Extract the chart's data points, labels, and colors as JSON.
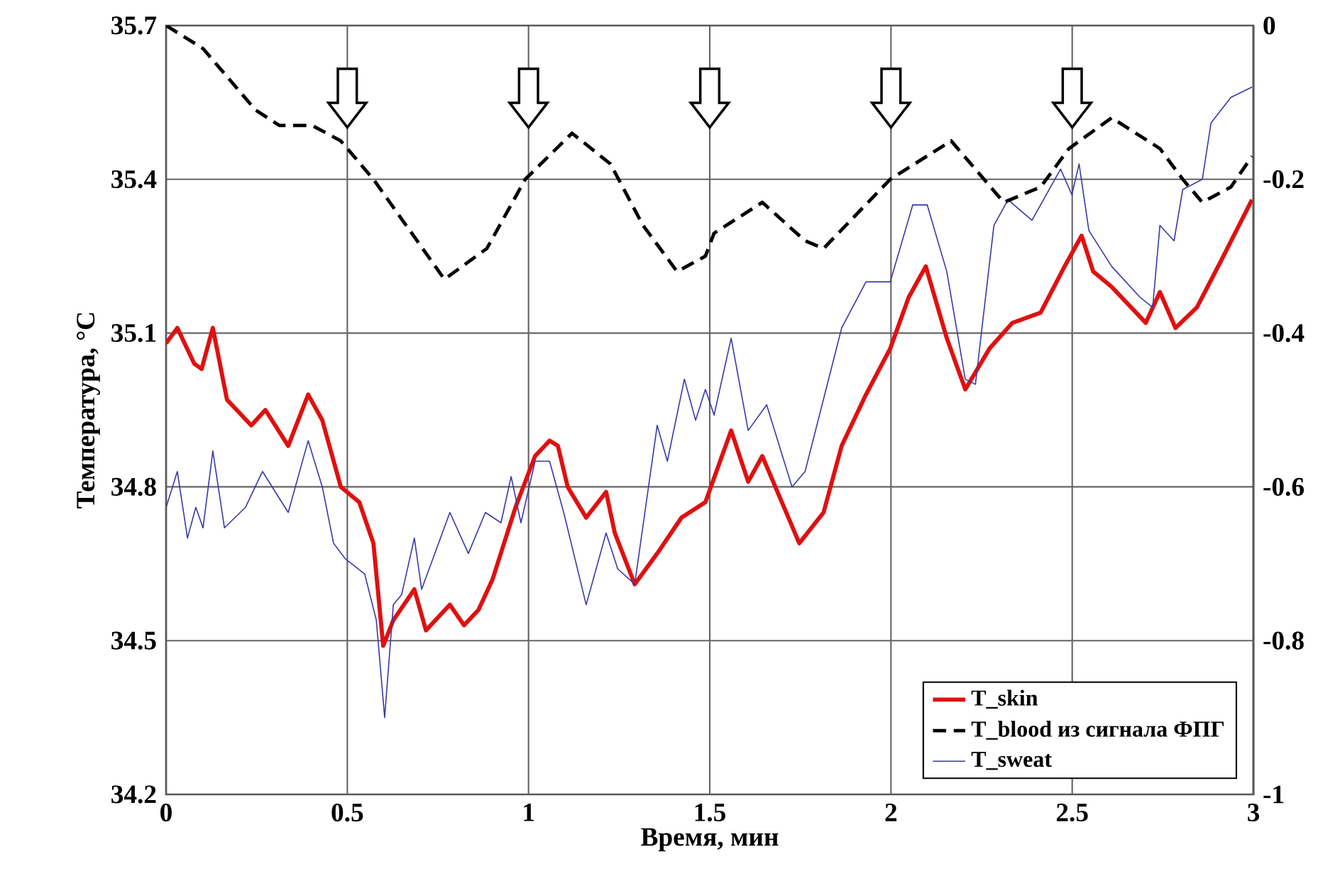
{
  "chart_data": {
    "type": "line",
    "xlabel": "Время, мин",
    "ylabel": "Температура, °C",
    "xlim": [
      0,
      3
    ],
    "xticks": [
      0,
      0.5,
      1,
      1.5,
      2,
      2.5,
      3
    ],
    "ylim": [
      34.2,
      35.7
    ],
    "yticks": [
      34.2,
      34.5,
      34.8,
      35.1,
      35.4,
      35.7
    ],
    "y2lim": [
      -1,
      0
    ],
    "y2ticks": [
      -1,
      -0.8,
      -0.6,
      -0.4,
      -0.2,
      0
    ],
    "grid": true,
    "legend": "bottom right",
    "series": [
      {
        "name": "T_skin",
        "color": "#e01010",
        "line_style": "solid",
        "x": [
          0,
          0.031,
          0.078,
          0.098,
          0.129,
          0.168,
          0.235,
          0.274,
          0.337,
          0.392,
          0.431,
          0.482,
          0.533,
          0.572,
          0.599,
          0.627,
          0.685,
          0.717,
          0.783,
          0.822,
          0.862,
          0.901,
          0.964,
          1.018,
          1.058,
          1.081,
          1.108,
          1.159,
          1.214,
          1.238,
          1.293,
          1.355,
          1.422,
          1.488,
          1.559,
          1.606,
          1.645,
          1.747,
          1.814,
          1.864,
          1.931,
          1.998,
          2.049,
          2.096,
          2.154,
          2.205,
          2.272,
          2.335,
          2.413,
          2.479,
          2.526,
          2.558,
          2.609,
          2.703,
          2.742,
          2.785,
          2.844,
          2.91,
          2.996
        ],
        "values": [
          35.08,
          35.11,
          35.04,
          35.03,
          35.11,
          34.97,
          34.92,
          34.95,
          34.88,
          34.98,
          34.93,
          34.8,
          34.77,
          34.69,
          34.49,
          34.54,
          34.6,
          34.52,
          34.57,
          34.53,
          34.56,
          34.62,
          34.76,
          34.86,
          34.89,
          34.88,
          34.8,
          34.74,
          34.79,
          34.71,
          34.61,
          34.67,
          34.74,
          34.77,
          34.91,
          34.81,
          34.86,
          34.69,
          34.75,
          34.88,
          34.98,
          35.07,
          35.17,
          35.23,
          35.09,
          34.99,
          35.07,
          35.12,
          35.14,
          35.23,
          35.29,
          35.22,
          35.19,
          35.12,
          35.18,
          35.11,
          35.15,
          35.24,
          35.36
        ]
      },
      {
        "name": "T_blood из сигнала ФПГ",
        "color": "#000000",
        "line_style": "dashed",
        "axis": "y2",
        "x": [
          0,
          0.102,
          0.247,
          0.313,
          0.403,
          0.482,
          0.572,
          0.768,
          0.885,
          0.991,
          1.12,
          1.226,
          1.316,
          1.41,
          1.488,
          1.512,
          1.645,
          1.763,
          1.814,
          1.998,
          2.166,
          2.311,
          2.413,
          2.491,
          2.609,
          2.742,
          2.805,
          2.859,
          2.938,
          2.996
        ],
        "values": [
          0,
          -0.03,
          -0.11,
          -0.13,
          -0.13,
          -0.15,
          -0.2,
          -0.33,
          -0.29,
          -0.2,
          -0.14,
          -0.18,
          -0.26,
          -0.32,
          -0.3,
          -0.27,
          -0.23,
          -0.28,
          -0.29,
          -0.2,
          -0.15,
          -0.23,
          -0.21,
          -0.16,
          -0.12,
          -0.16,
          -0.2,
          -0.23,
          -0.21,
          -0.17
        ]
      },
      {
        "name": "T_sweat",
        "color": "#3838a8",
        "line_style": "solid",
        "x": [
          0,
          0.031,
          0.059,
          0.082,
          0.102,
          0.129,
          0.161,
          0.219,
          0.266,
          0.337,
          0.392,
          0.431,
          0.462,
          0.494,
          0.548,
          0.58,
          0.603,
          0.627,
          0.65,
          0.685,
          0.705,
          0.783,
          0.834,
          0.881,
          0.924,
          0.952,
          0.979,
          1.018,
          1.058,
          1.097,
          1.159,
          1.214,
          1.246,
          1.293,
          1.355,
          1.383,
          1.43,
          1.461,
          1.488,
          1.512,
          1.559,
          1.606,
          1.657,
          1.727,
          1.763,
          1.864,
          1.931,
          1.998,
          2.06,
          2.1,
          2.154,
          2.205,
          2.233,
          2.284,
          2.323,
          2.389,
          2.468,
          2.499,
          2.519,
          2.546,
          2.609,
          2.687,
          2.722,
          2.742,
          2.781,
          2.805,
          2.859,
          2.883,
          2.938,
          2.996
        ],
        "values": [
          34.76,
          34.83,
          34.7,
          34.76,
          34.72,
          34.87,
          34.72,
          34.76,
          34.83,
          34.75,
          34.89,
          34.8,
          34.69,
          34.66,
          34.63,
          34.54,
          34.35,
          34.57,
          34.59,
          34.7,
          34.6,
          34.75,
          34.67,
          34.75,
          34.73,
          34.82,
          34.73,
          34.85,
          34.85,
          34.75,
          34.57,
          34.71,
          34.64,
          34.61,
          34.92,
          34.85,
          35.01,
          34.93,
          34.99,
          34.94,
          35.09,
          34.91,
          34.96,
          34.8,
          34.83,
          35.11,
          35.2,
          35.2,
          35.35,
          35.35,
          35.22,
          35.01,
          35,
          35.31,
          35.36,
          35.32,
          35.42,
          35.37,
          35.43,
          35.3,
          35.23,
          35.17,
          35.15,
          35.31,
          35.28,
          35.38,
          35.4,
          35.51,
          35.56,
          35.58
        ]
      }
    ]
  }
}
